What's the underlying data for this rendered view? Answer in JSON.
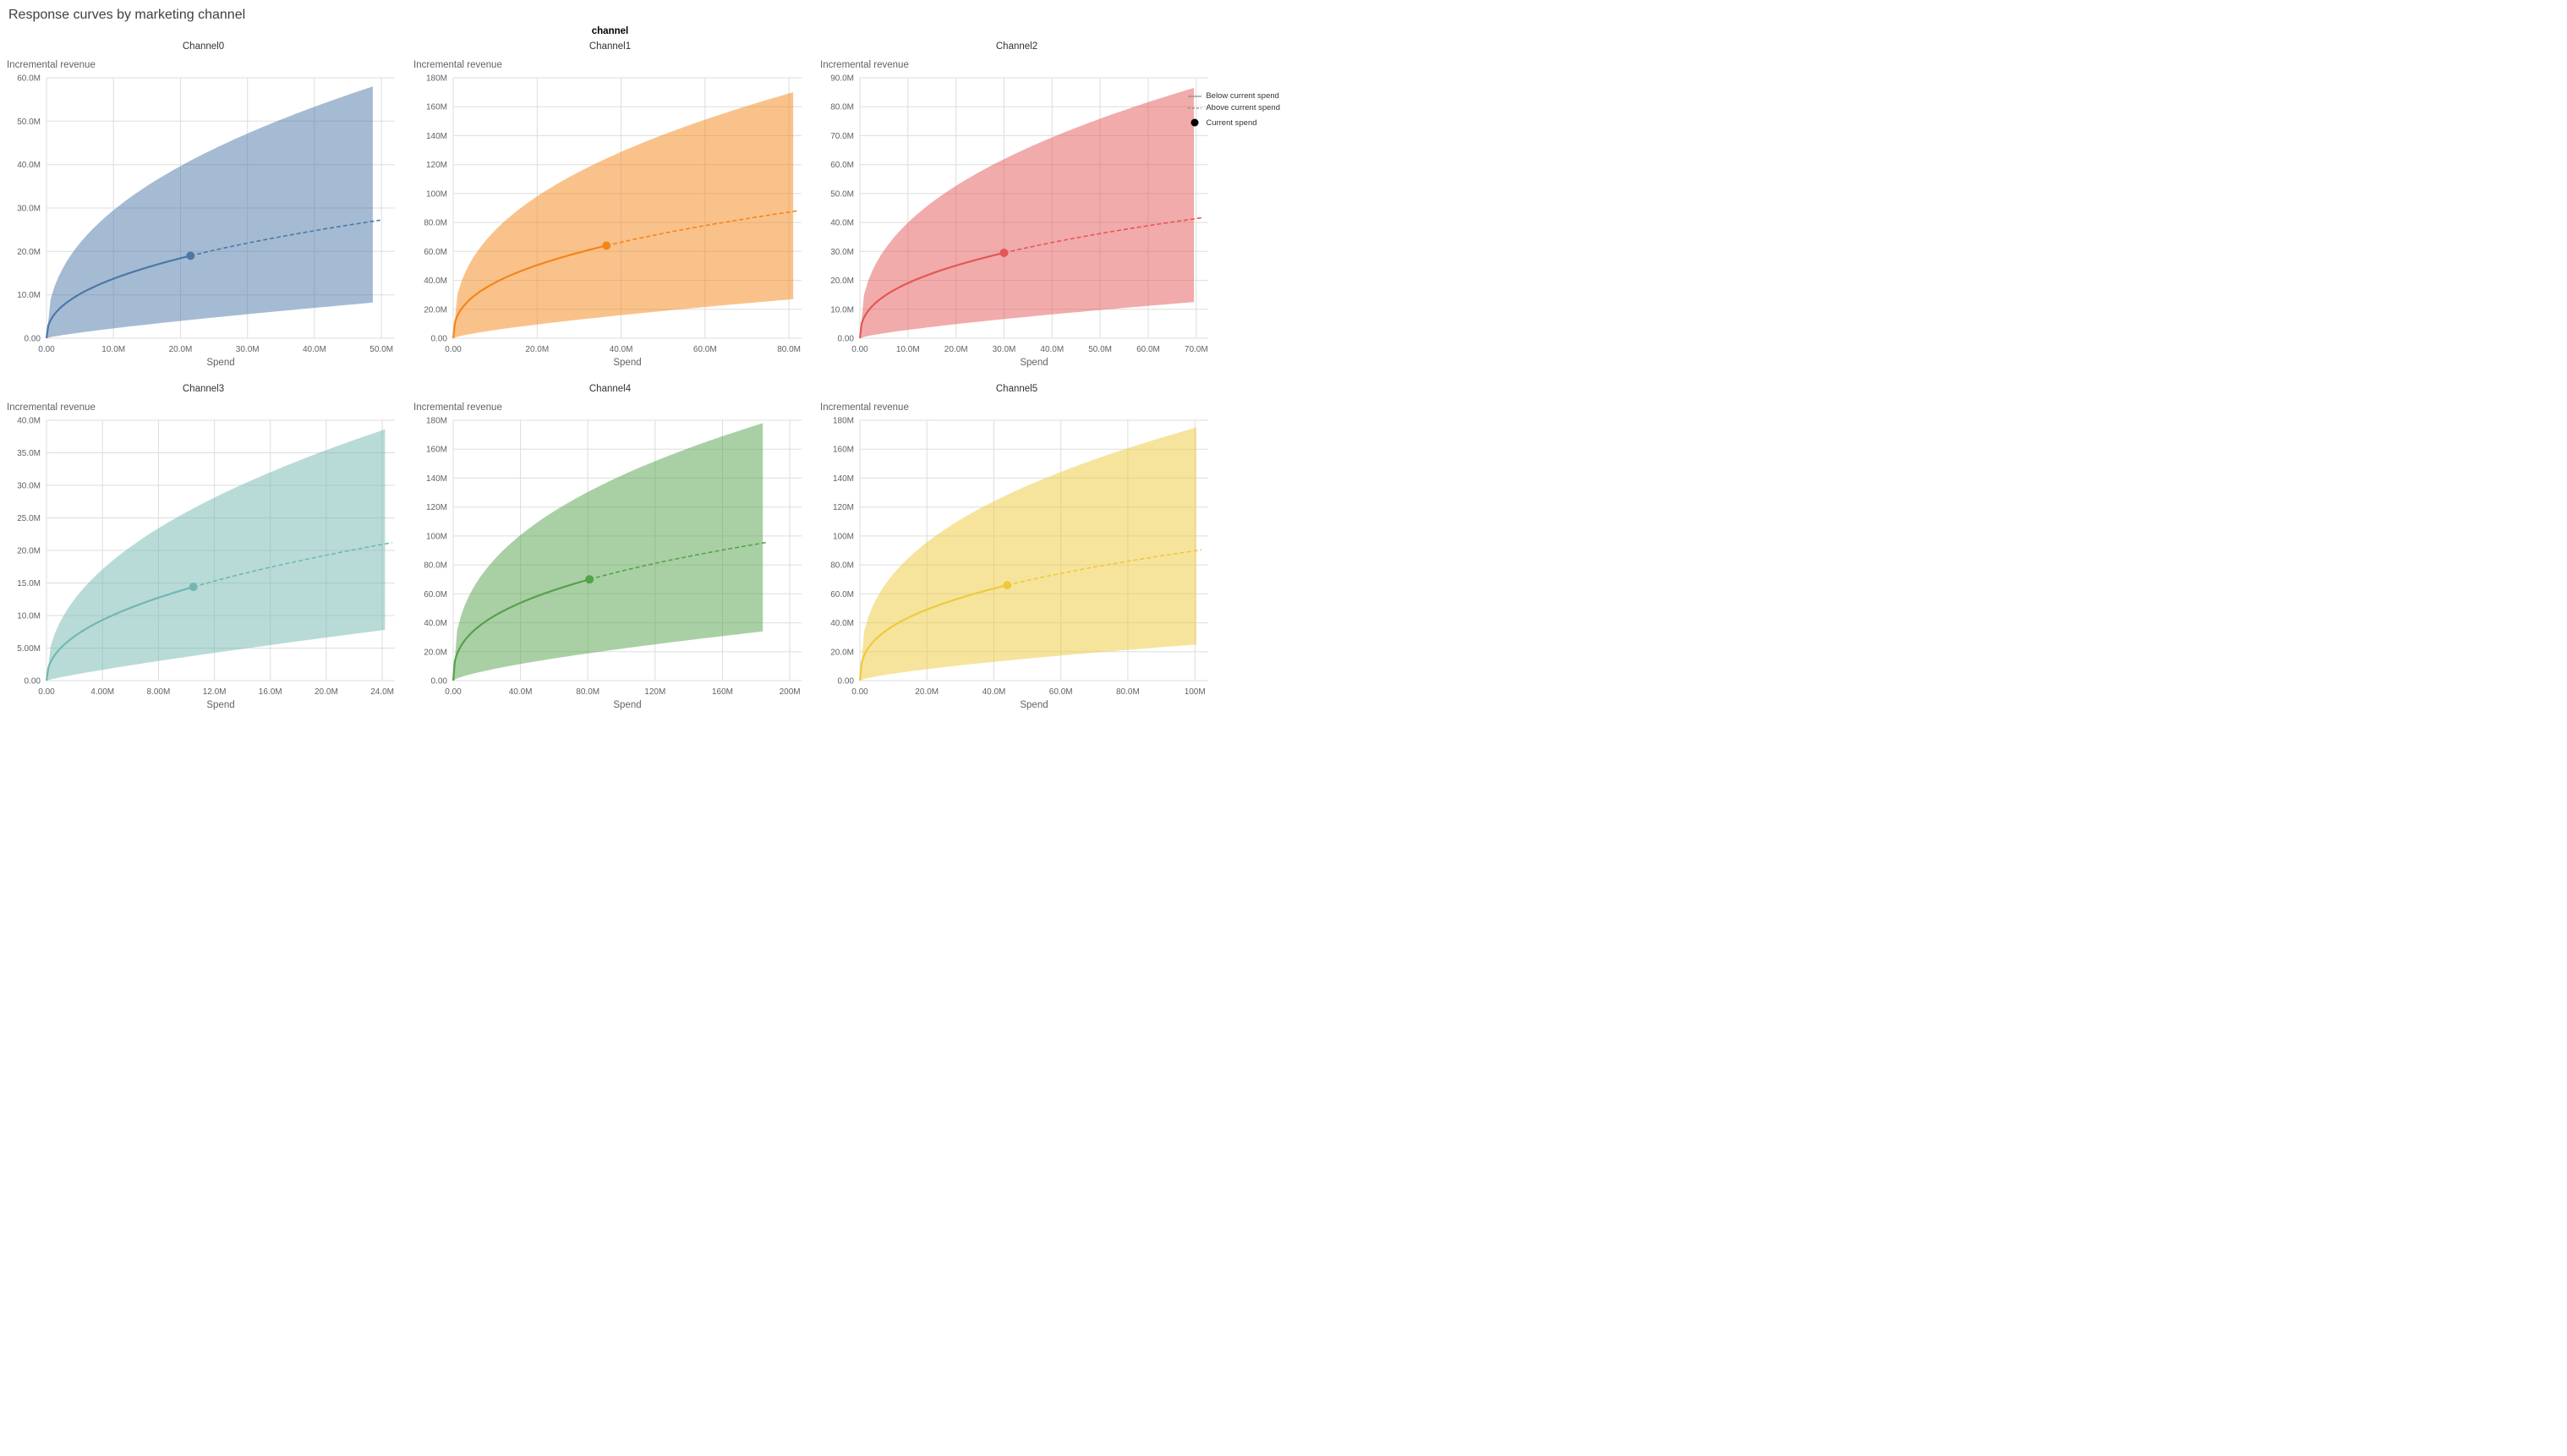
{
  "page": {
    "title": "Response curves by marketing channel"
  },
  "facet_title": "channel",
  "legend": {
    "items": [
      {
        "symbol": "solid-line",
        "label": "Below current spend"
      },
      {
        "symbol": "dashed-line",
        "label": "Above current spend"
      },
      {
        "symbol": "dot",
        "label": "Current spend"
      }
    ]
  },
  "chart_data": {
    "type": "line",
    "layout": "2x3 small multiples, shared design: saturating response curve with confidence band",
    "units": "all spend and revenue values in millions (M)",
    "grid": "on",
    "legend_position": "top-right",
    "charts": [
      {
        "title": "Channel0",
        "color": "#4c78a8",
        "x_axis_title": "Spend",
        "y_axis_title": "Incremental revenue",
        "x_domain_max": 52,
        "y_domain_max": 60,
        "x_ticks": [
          {
            "value": 0,
            "label": "0.00"
          },
          {
            "value": 10,
            "label": "10.0M"
          },
          {
            "value": 20,
            "label": "20.0M"
          },
          {
            "value": 30,
            "label": "30.0M"
          },
          {
            "value": 40,
            "label": "40.0M"
          },
          {
            "value": 50,
            "label": "50.0M"
          }
        ],
        "y_ticks": [
          {
            "value": 0,
            "label": "0.00"
          },
          {
            "value": 10,
            "label": "10.0M"
          },
          {
            "value": 20,
            "label": "20.0M"
          },
          {
            "value": 30,
            "label": "30.0M"
          },
          {
            "value": 40,
            "label": "40.0M"
          },
          {
            "value": 50,
            "label": "50.0M"
          },
          {
            "value": 60,
            "label": "60.0M"
          }
        ],
        "current_spend": {
          "x": 21.5,
          "y": 19
        },
        "dashed_end": {
          "x": 49.8,
          "y": 27.2
        },
        "band": {
          "x_end": 48.7,
          "upper_y": 58,
          "lower_y": 8.2
        }
      },
      {
        "title": "Channel1",
        "color": "#f58518",
        "x_axis_title": "Spend",
        "y_axis_title": "Incremental revenue",
        "x_domain_max": 83,
        "y_domain_max": 180,
        "x_ticks": [
          {
            "value": 0,
            "label": "0.00"
          },
          {
            "value": 20,
            "label": "20.0M"
          },
          {
            "value": 40,
            "label": "40.0M"
          },
          {
            "value": 60,
            "label": "60.0M"
          },
          {
            "value": 80,
            "label": "80.0M"
          }
        ],
        "y_ticks": [
          {
            "value": 0,
            "label": "0.00"
          },
          {
            "value": 20,
            "label": "20.0M"
          },
          {
            "value": 40,
            "label": "40.0M"
          },
          {
            "value": 60,
            "label": "60.0M"
          },
          {
            "value": 80,
            "label": "80.0M"
          },
          {
            "value": 100,
            "label": "100M"
          },
          {
            "value": 120,
            "label": "120M"
          },
          {
            "value": 140,
            "label": "140M"
          },
          {
            "value": 160,
            "label": "160M"
          },
          {
            "value": 180,
            "label": "180M"
          }
        ],
        "current_spend": {
          "x": 36.5,
          "y": 64
        },
        "dashed_end": {
          "x": 82,
          "y": 88
        },
        "band": {
          "x_end": 81,
          "upper_y": 170,
          "lower_y": 27
        }
      },
      {
        "title": "Channel2",
        "color": "#e45756",
        "x_axis_title": "Spend",
        "y_axis_title": "Incremental revenue",
        "x_domain_max": 72.5,
        "y_domain_max": 90,
        "x_ticks": [
          {
            "value": 0,
            "label": "0.00"
          },
          {
            "value": 10,
            "label": "10.0M"
          },
          {
            "value": 20,
            "label": "20.0M"
          },
          {
            "value": 30,
            "label": "30.0M"
          },
          {
            "value": 40,
            "label": "40.0M"
          },
          {
            "value": 50,
            "label": "50.0M"
          },
          {
            "value": 60,
            "label": "60.0M"
          },
          {
            "value": 70,
            "label": "70.0M"
          }
        ],
        "y_ticks": [
          {
            "value": 0,
            "label": "0.00"
          },
          {
            "value": 10,
            "label": "10.0M"
          },
          {
            "value": 20,
            "label": "20.0M"
          },
          {
            "value": 30,
            "label": "30.0M"
          },
          {
            "value": 40,
            "label": "40.0M"
          },
          {
            "value": 50,
            "label": "50.0M"
          },
          {
            "value": 60,
            "label": "60.0M"
          },
          {
            "value": 70,
            "label": "70.0M"
          },
          {
            "value": 80,
            "label": "80.0M"
          },
          {
            "value": 90,
            "label": "90.0M"
          }
        ],
        "current_spend": {
          "x": 30,
          "y": 29.5
        },
        "dashed_end": {
          "x": 71.5,
          "y": 41.7
        },
        "band": {
          "x_end": 69.5,
          "upper_y": 86.5,
          "lower_y": 12.5
        }
      },
      {
        "title": "Channel3",
        "color": "#72b7b2",
        "x_axis_title": "Spend",
        "y_axis_title": "Incremental revenue",
        "x_domain_max": 24.9,
        "y_domain_max": 40,
        "x_ticks": [
          {
            "value": 0,
            "label": "0.00"
          },
          {
            "value": 4,
            "label": "4.00M"
          },
          {
            "value": 8,
            "label": "8.00M"
          },
          {
            "value": 12,
            "label": "12.0M"
          },
          {
            "value": 16,
            "label": "16.0M"
          },
          {
            "value": 20,
            "label": "20.0M"
          },
          {
            "value": 24,
            "label": "24.0M"
          }
        ],
        "y_ticks": [
          {
            "value": 0,
            "label": "0.00"
          },
          {
            "value": 5,
            "label": "5.00M"
          },
          {
            "value": 10,
            "label": "10.0M"
          },
          {
            "value": 15,
            "label": "15.0M"
          },
          {
            "value": 20,
            "label": "20.0M"
          },
          {
            "value": 25,
            "label": "25.0M"
          },
          {
            "value": 30,
            "label": "30.0M"
          },
          {
            "value": 35,
            "label": "35.0M"
          },
          {
            "value": 40,
            "label": "40.0M"
          }
        ],
        "current_spend": {
          "x": 10.5,
          "y": 14.4
        },
        "dashed_end": {
          "x": 24.7,
          "y": 21.2
        },
        "band": {
          "x_end": 24.2,
          "upper_y": 38.6,
          "lower_y": 7.8
        }
      },
      {
        "title": "Channel4",
        "color": "#54a24b",
        "x_axis_title": "Spend",
        "y_axis_title": "Incremental revenue",
        "x_domain_max": 207,
        "y_domain_max": 180,
        "x_ticks": [
          {
            "value": 0,
            "label": "0.00"
          },
          {
            "value": 40,
            "label": "40.0M"
          },
          {
            "value": 80,
            "label": "80.0M"
          },
          {
            "value": 120,
            "label": "120M"
          },
          {
            "value": 160,
            "label": "160M"
          },
          {
            "value": 200,
            "label": "200M"
          }
        ],
        "y_ticks": [
          {
            "value": 0,
            "label": "0.00"
          },
          {
            "value": 20,
            "label": "20.0M"
          },
          {
            "value": 40,
            "label": "40.0M"
          },
          {
            "value": 60,
            "label": "60.0M"
          },
          {
            "value": 80,
            "label": "80.0M"
          },
          {
            "value": 100,
            "label": "100M"
          },
          {
            "value": 120,
            "label": "120M"
          },
          {
            "value": 140,
            "label": "140M"
          },
          {
            "value": 160,
            "label": "160M"
          },
          {
            "value": 180,
            "label": "180M"
          }
        ],
        "current_spend": {
          "x": 81,
          "y": 70
        },
        "dashed_end": {
          "x": 186,
          "y": 95.5
        },
        "band": {
          "x_end": 184,
          "upper_y": 178,
          "lower_y": 34
        }
      },
      {
        "title": "Channel5",
        "color": "#eeca3b",
        "x_axis_title": "Spend",
        "y_axis_title": "Incremental revenue",
        "x_domain_max": 104,
        "y_domain_max": 180,
        "x_ticks": [
          {
            "value": 0,
            "label": "0.00"
          },
          {
            "value": 20,
            "label": "20.0M"
          },
          {
            "value": 40,
            "label": "40.0M"
          },
          {
            "value": 60,
            "label": "60.0M"
          },
          {
            "value": 80,
            "label": "80.0M"
          },
          {
            "value": 100,
            "label": "100M"
          }
        ],
        "y_ticks": [
          {
            "value": 0,
            "label": "0.00"
          },
          {
            "value": 20,
            "label": "20.0M"
          },
          {
            "value": 40,
            "label": "40.0M"
          },
          {
            "value": 60,
            "label": "60.0M"
          },
          {
            "value": 80,
            "label": "80.0M"
          },
          {
            "value": 100,
            "label": "100M"
          },
          {
            "value": 120,
            "label": "120M"
          },
          {
            "value": 140,
            "label": "140M"
          },
          {
            "value": 160,
            "label": "160M"
          },
          {
            "value": 180,
            "label": "180M"
          }
        ],
        "current_spend": {
          "x": 44,
          "y": 66
        },
        "dashed_end": {
          "x": 102,
          "y": 90.4
        },
        "band": {
          "x_end": 100.5,
          "upper_y": 175,
          "lower_y": 25
        }
      }
    ]
  }
}
